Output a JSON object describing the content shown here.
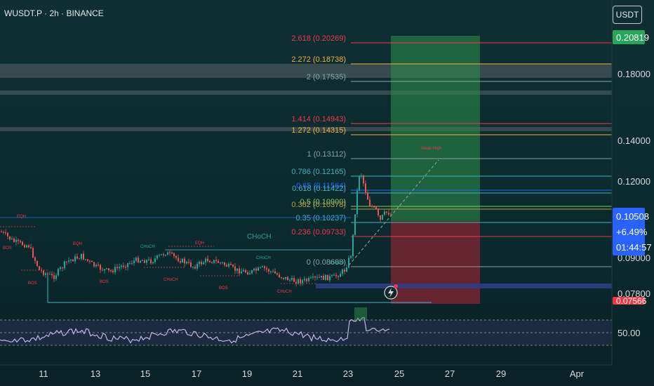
{
  "header": {
    "symbol_line": "WUSDT.P · 2h · BINANCE"
  },
  "unit_badge": "USDT",
  "price_scale": {
    "ticks": [
      "0.18000",
      "0.14000",
      "0.12000",
      "0.09000",
      "0.07800"
    ],
    "rsi_tick": "50.00",
    "badges": {
      "top": "0.20819",
      "current": "0.10508",
      "change": "+6.49%",
      "countdown": "01:44:57",
      "bottom": "0.07566"
    }
  },
  "x_axis": {
    "ticks": [
      "11",
      "13",
      "15",
      "17",
      "19",
      "21",
      "23",
      "25",
      "27",
      "29",
      "Apr"
    ]
  },
  "fib_levels": [
    {
      "label": "2.618 (0.20269)",
      "color": "#f23645"
    },
    {
      "label": "2.272 (0.18738)",
      "color": "#f0b13b"
    },
    {
      "label": "2 (0.17535)",
      "color": "#89a8a6"
    },
    {
      "label": "1.414 (0.14943)",
      "color": "#f23645"
    },
    {
      "label": "1.272 (0.14315)",
      "color": "#f0b13b"
    },
    {
      "label": "1 (0.13112)",
      "color": "#8aa0a0"
    },
    {
      "label": "0.786 (0.12165)",
      "color": "#39b6c3"
    },
    {
      "label": "0.65 (0.11564)",
      "color": "#2962ff"
    },
    {
      "label": "0.618 (0.11422)",
      "color": "#39b6c3"
    },
    {
      "label": "0.5 (0.10900)",
      "color": "#7ec86a"
    },
    {
      "label": "0.382 (0.10378)",
      "color": "#b7a13b"
    },
    {
      "label": "0.35 (0.10237)",
      "color": "#39b6c3"
    },
    {
      "label": "0.236 (0.09733)",
      "color": "#f23645"
    },
    {
      "label": "0 (0.08688)",
      "color": "#8aa0a0"
    }
  ],
  "annotations": {
    "eqh": "EQH",
    "bos": "BOS",
    "choch": "CHoCH",
    "weak_high": "Weak High"
  },
  "colors": {
    "background": "#0e2a2f",
    "up": "#26a69a",
    "down": "#ef5350",
    "profit_zone": "#2f8f4a",
    "loss_zone": "#8b2333",
    "rsi_line": "#c4b4e8"
  },
  "chart_data": {
    "type": "candlestick",
    "series": [],
    "x_ticks": [
      "11",
      "13",
      "15",
      "17",
      "19",
      "21",
      "23",
      "25",
      "27",
      "29",
      "Apr"
    ],
    "y_ticks": [
      0.18,
      0.14,
      0.12,
      0.09,
      0.078
    ],
    "current_price": 0.10508,
    "change_percent": "+6.49%",
    "fib_values": [
      0.20269,
      0.18738,
      0.17535,
      0.14943,
      0.14315,
      0.13112,
      0.12165,
      0.11564,
      0.11422,
      0.109,
      0.10378,
      0.10237,
      0.09733,
      0.08688
    ],
    "rsi_level": 50
  }
}
